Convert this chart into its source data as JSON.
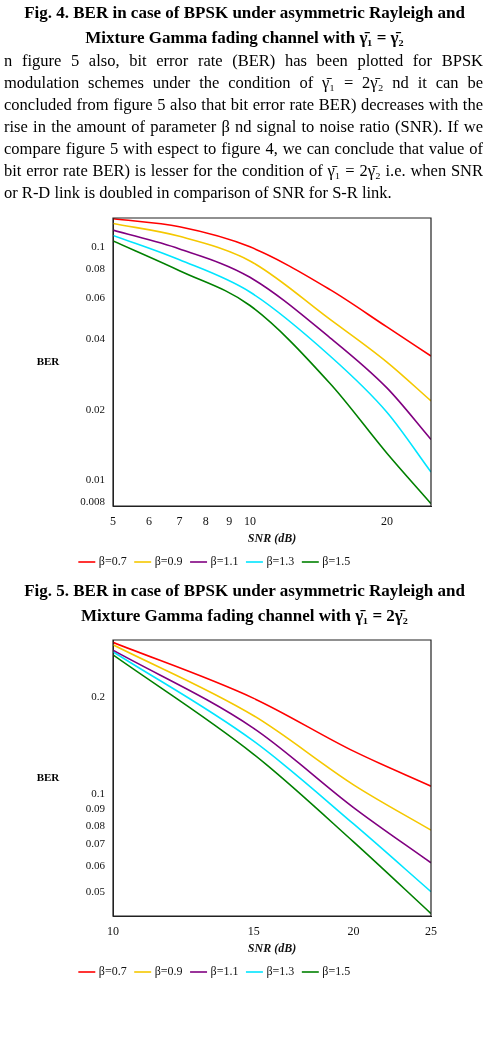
{
  "chart_data": [
    {
      "type": "line",
      "xlabel": "SNR (dB)",
      "ylabel": "BER",
      "log": "xy",
      "legend": "bottom",
      "annotations": [
        "Fig. 4. BER in case of BPSK under asymmetric Rayleigh and Mixture Gamma fading channel with γ̄₁ = γ̄₂",
        "n figure 5 also, bit error rate (BER) has been plotted for BPSK modulation schemes under the condition of γ̄₁ = 2γ̄₂ nd it can be concluded from figure 5 also that bit error rate BER) decreases with the rise in the amount of parameter β nd signal to noise ratio (SNR). If we compare figure 5 with espect to figure 4, we can conclude that value of bit error rate BER) is lesser for the condition of γ̄₁ = 2γ̄₂ i.e. when SNR or R-D link is doubled in comparison of SNR for S-R link.",
        "Fig. 5. BER in case of BPSK under asymmetric Rayleigh and Mixture Gamma fading channel with γ̄₁ = 2γ̄₂"
      ],
      "x": [
        5,
        7,
        10,
        15,
        20,
        25
      ],
      "xlim": [
        5,
        25
      ],
      "xticks": [
        5,
        6,
        7,
        8,
        9,
        10,
        20
      ],
      "ylim": [
        0.0077,
        0.133
      ],
      "yticks": [
        0.008,
        0.01,
        0.02,
        0.04,
        0.06,
        0.08,
        0.1
      ],
      "series": [
        {
          "name": "β=0.7",
          "color": "#ff0000",
          "values": [
            0.132,
            0.122,
            0.1,
            0.0655,
            0.0453,
            0.034
          ]
        },
        {
          "name": "β=0.9",
          "color": "#f5c800",
          "values": [
            0.126,
            0.111,
            0.087,
            0.0488,
            0.032,
            0.0218
          ]
        },
        {
          "name": "β=1.1",
          "color": "#800080",
          "values": [
            0.118,
            0.098,
            0.074,
            0.0407,
            0.0248,
            0.0149
          ]
        },
        {
          "name": "β=1.3",
          "color": "#00e5ff",
          "values": [
            0.112,
            0.088,
            0.064,
            0.034,
            0.0195,
            0.0108
          ]
        },
        {
          "name": "β=1.5",
          "color": "#008000",
          "values": [
            0.106,
            0.079,
            0.056,
            0.0259,
            0.013,
            0.0079
          ]
        }
      ]
    },
    {
      "type": "line",
      "xlabel": "SNR (dB)",
      "ylabel": "BER",
      "log": "xy",
      "legend": "bottom",
      "x": [
        10,
        15,
        20,
        25
      ],
      "xlim": [
        10,
        25
      ],
      "xticks": [
        10,
        15,
        20,
        25
      ],
      "ylim": [
        0.042,
        0.3
      ],
      "yticks": [
        0.05,
        0.06,
        0.07,
        0.08,
        0.09,
        0.1,
        0.2
      ],
      "series": [
        {
          "name": "β=0.7",
          "color": "#ff0000",
          "values": [
            0.295,
            0.198,
            0.136,
            0.106
          ]
        },
        {
          "name": "β=0.9",
          "color": "#f5c800",
          "values": [
            0.29,
            0.175,
            0.107,
            0.0775
          ]
        },
        {
          "name": "β=1.1",
          "color": "#800080",
          "values": [
            0.279,
            0.16,
            0.091,
            0.0614
          ]
        },
        {
          "name": "β=1.3",
          "color": "#00e5ff",
          "values": [
            0.276,
            0.146,
            0.081,
            0.05
          ]
        },
        {
          "name": "β=1.5",
          "color": "#008000",
          "values": [
            0.27,
            0.133,
            0.0713,
            0.0428
          ]
        }
      ]
    }
  ]
}
